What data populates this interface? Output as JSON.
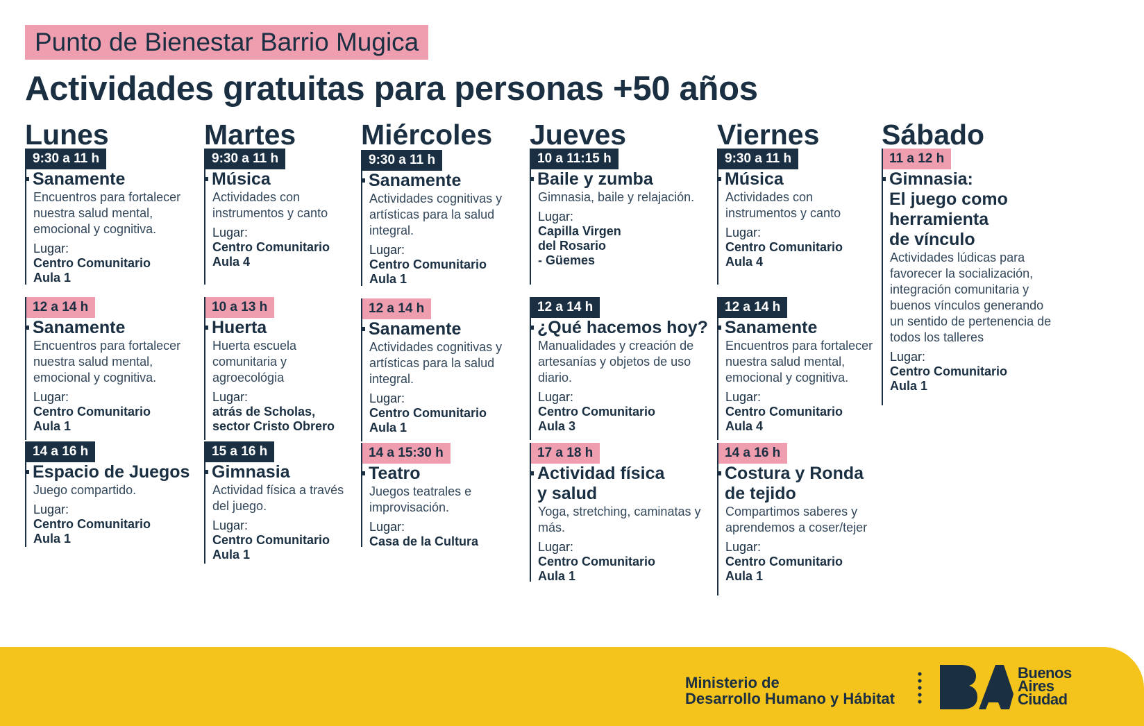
{
  "header": {
    "subtitle": "Punto de Bienestar Barrio Mugica",
    "title": "Actividades gratuitas para personas +50 años"
  },
  "days": [
    {
      "name": "Lunes",
      "activities": [
        {
          "time": "9:30 a 11 h",
          "title": "Sanamente",
          "description": "Encuentros para fortalecer nuestra salud mental, emocional y cognitiva.",
          "place_label": "Lugar:",
          "place": "Centro Comunitario\nAula 1"
        },
        {
          "time": "12 a 14 h",
          "title": "Sanamente",
          "description": "Encuentros para fortalecer nuestra salud mental, emocional y cognitiva.",
          "place_label": "Lugar:",
          "place": "Centro Comunitario\nAula 1"
        },
        {
          "time": "14 a 16 h",
          "title": "Espacio de Juegos",
          "description": "Juego compartido.",
          "place_label": "Lugar:",
          "place": "Centro Comunitario\nAula 1"
        }
      ]
    },
    {
      "name": "Martes",
      "activities": [
        {
          "time": "9:30 a 11 h",
          "title": "Música",
          "description": "Actividades con instrumentos y canto",
          "place_label": "Lugar:",
          "place": "Centro Comunitario\nAula 4"
        },
        {
          "time": "10 a 13 h",
          "title": "Huerta",
          "description": "Huerta escuela comunitaria y agroecológia",
          "place_label": "Lugar:",
          "place": "atrás de Scholas,\nsector Cristo Obrero"
        },
        {
          "time": "15 a 16 h",
          "title": "Gimnasia",
          "description": "Actividad física a través del juego.",
          "place_label": "Lugar:",
          "place": "Centro Comunitario\nAula 1"
        }
      ]
    },
    {
      "name": "Miércoles",
      "activities": [
        {
          "time": "9:30 a 11 h",
          "title": "Sanamente",
          "description": "Actividades cognitivas y artísticas para la salud integral.",
          "place_label": "Lugar:",
          "place": "Centro Comunitario\nAula 1"
        },
        {
          "time": "12 a 14 h",
          "title": "Sanamente",
          "description": "Actividades cognitivas y artísticas para la salud integral.",
          "place_label": "Lugar:",
          "place": "Centro Comunitario\nAula 1"
        },
        {
          "time": "14 a 15:30 h",
          "title": "Teatro",
          "description": "Juegos teatrales e improvisación.",
          "place_label": "Lugar:",
          "place": "Casa de la Cultura"
        }
      ]
    },
    {
      "name": "Jueves",
      "activities": [
        {
          "time": "10 a 11:15 h",
          "title": "Baile y zumba",
          "description": "Gimnasia, baile y relajación.",
          "place_label": "Lugar:",
          "place": "Capilla Virgen\ndel Rosario\n- Güemes"
        },
        {
          "time": "12 a 14 h",
          "title": "¿Qué hacemos hoy?",
          "description": "Manualidades y creación de artesanías y objetos de uso diario.",
          "place_label": "Lugar:",
          "place": "Centro Comunitario\nAula 3"
        },
        {
          "time": "17 a 18 h",
          "title": "Actividad física\ny salud",
          "description": "Yoga, stretching, caminatas y más.",
          "place_label": "Lugar:",
          "place": "Centro Comunitario\nAula 1"
        }
      ]
    },
    {
      "name": "Viernes",
      "activities": [
        {
          "time": "9:30 a 11 h",
          "title": "Música",
          "description": "Actividades con instrumentos y canto",
          "place_label": "Lugar:",
          "place": "Centro Comunitario\nAula 4"
        },
        {
          "time": "12 a 14 h",
          "title": "Sanamente",
          "description": "Encuentros para fortalecer nuestra salud mental, emocional y cognitiva.",
          "place_label": "Lugar:",
          "place": "Centro Comunitario\nAula 4"
        },
        {
          "time": "14 a 16 h",
          "title": "Costura y Ronda\nde tejido",
          "description": "Compartimos saberes y aprendemos a coser/tejer",
          "place_label": "Lugar:",
          "place": "Centro Comunitario\nAula 1"
        }
      ]
    },
    {
      "name": "Sábado",
      "activities": [
        {
          "time": "11 a 12 h",
          "title": "Gimnasia:\nEl juego como\nherramienta\nde vínculo",
          "description": "Actividades lúdicas para favorecer la socialización, integración comunitaria y buenos vínculos generando un sentido de pertenencia de todos los talleres",
          "place_label": "Lugar:",
          "place": "Centro Comunitario\nAula 1"
        }
      ]
    }
  ],
  "footer": {
    "ministry": "Ministerio de\nDesarrollo Humano y Hábitat",
    "logo_text": [
      "Buenos",
      "Aires",
      "Ciudad"
    ],
    "logo_mark": "BA"
  },
  "colors": {
    "navy": "#1a2f42",
    "pink": "#ee9eaf",
    "yellow": "#f4c31c"
  }
}
